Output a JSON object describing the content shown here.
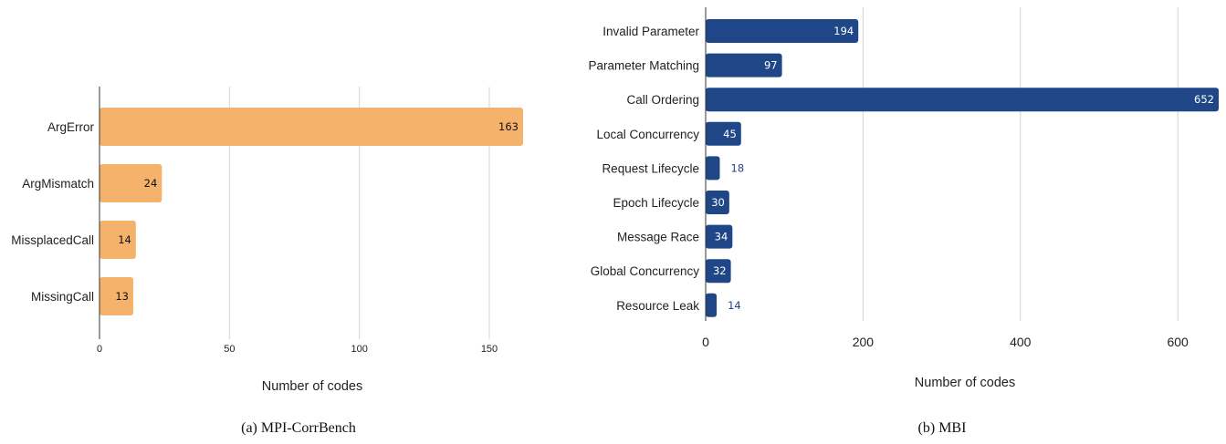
{
  "chart_data": [
    {
      "type": "bar",
      "orientation": "horizontal",
      "caption": "(a)  MPI-CorrBench",
      "xlabel": "Number of codes",
      "ylabel": "",
      "xlim": [
        0,
        163
      ],
      "xticks": [
        0,
        50,
        100,
        150
      ],
      "grid": true,
      "bar_color": "#F5B26B",
      "label_color": "#111111",
      "categories": [
        "ArgError",
        "ArgMismatch",
        "MissplacedCall",
        "MissingCall"
      ],
      "values": [
        163,
        24,
        14,
        13
      ]
    },
    {
      "type": "bar",
      "orientation": "horizontal",
      "caption": "(b)  MBI",
      "xlabel": "Number of codes",
      "ylabel": "",
      "xlim": [
        0,
        652
      ],
      "xticks": [
        0,
        200,
        400,
        600
      ],
      "grid": true,
      "bar_color": "#1F4788",
      "label_color_inside": "#ffffff",
      "label_color_outside": "#1F4788",
      "categories": [
        "Invalid Parameter",
        "Parameter Matching",
        "Call Ordering",
        "Local Concurrency",
        "Request Lifecycle",
        "Epoch Lifecycle",
        "Message Race",
        "Global Concurrency",
        "Resource Leak"
      ],
      "values": [
        194,
        97,
        652,
        45,
        18,
        30,
        34,
        32,
        14
      ]
    }
  ]
}
